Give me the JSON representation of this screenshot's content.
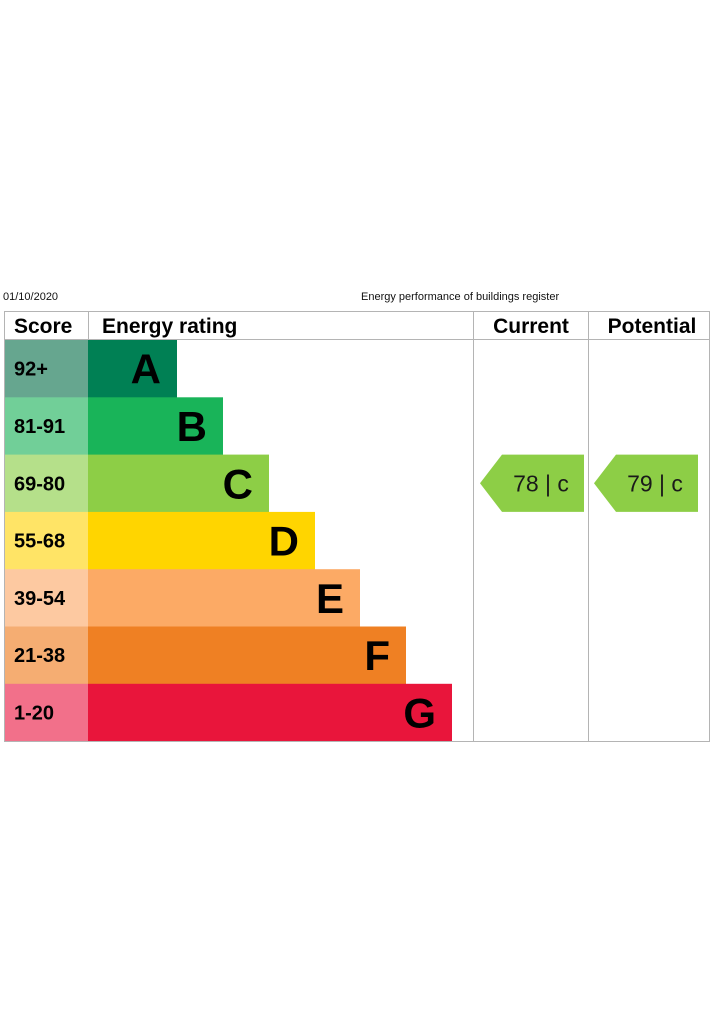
{
  "header": {
    "date": "01/10/2020",
    "title": "Energy performance of buildings register"
  },
  "columns": {
    "score": "Score",
    "rating": "Energy rating",
    "current": "Current",
    "potential": "Potential"
  },
  "chart_data": {
    "type": "bar",
    "categories": [
      "A",
      "B",
      "C",
      "D",
      "E",
      "F",
      "G"
    ],
    "score_ranges": [
      "92+",
      "81-91",
      "69-80",
      "55-68",
      "39-54",
      "21-38",
      "1-20"
    ],
    "band_colors": [
      "#008054",
      "#19b459",
      "#8dce46",
      "#ffd500",
      "#fcaa65",
      "#ef8023",
      "#e9153b"
    ],
    "score_colors": [
      "#66a68f",
      "#71cf98",
      "#b5e08a",
      "#ffe466",
      "#fdc9a1",
      "#f5ad72",
      "#f2708a"
    ],
    "current": {
      "value": 78,
      "band": "c",
      "label": "78 |  c",
      "color": "#8dce46"
    },
    "potential": {
      "value": 79,
      "band": "c",
      "label": "79 |  c",
      "color": "#8dce46"
    }
  }
}
